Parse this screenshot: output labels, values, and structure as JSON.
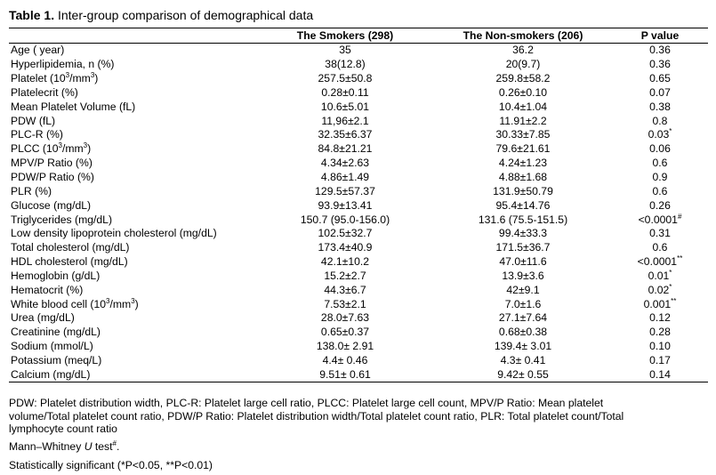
{
  "caption": {
    "label": "Table 1.",
    "text": " Inter-group comparison of demographical data"
  },
  "table": {
    "headers": [
      "",
      "The Smokers (298)",
      "The Non-smokers (206)",
      "P value"
    ],
    "rows": [
      {
        "variable": "Age ( year)",
        "smokers": "35",
        "non_smokers": "36.2",
        "p": "0.36"
      },
      {
        "variable": "Hyperlipidemia, n (%)",
        "smokers": "38(12.8)",
        "non_smokers": "20(9.7)",
        "p": "0.36"
      },
      {
        "variable": "Platelet (10",
        "variable_sup": "3",
        "variable_tail": "/mm",
        "variable_sup2": "3",
        "variable_end": ")",
        "smokers": "257.5±50.8",
        "non_smokers": "259.8±58.2",
        "p": "0.65"
      },
      {
        "variable": "Platelecrit (%)",
        "smokers": "0.28±0.11",
        "non_smokers": "0.26±0.10",
        "p": "0.07"
      },
      {
        "variable": "Mean Platelet Volume (fL)",
        "smokers": "10.6±5.01",
        "non_smokers": "10.4±1.04",
        "p": "0.38"
      },
      {
        "variable": "PDW (fL)",
        "smokers": "11,96±2.1",
        "non_smokers": "11.91±2.2",
        "p": "0.8"
      },
      {
        "variable": "PLC-R (%)",
        "smokers": "32.35±6.37",
        "non_smokers": "30.33±7.85",
        "p": "0.03",
        "p_sup": "*"
      },
      {
        "variable": "PLCC (10",
        "variable_sup": "3",
        "variable_tail": "/mm",
        "variable_sup2": "3",
        "variable_end": ")",
        "smokers": "84.8±21.21",
        "non_smokers": "79.6±21.61",
        "p": "0.06"
      },
      {
        "variable": "MPV/P Ratio (%)",
        "smokers": "4.34±2.63",
        "non_smokers": "4.24±1.23",
        "p": "0.6"
      },
      {
        "variable": "PDW/P Ratio (%)",
        "smokers": "4.86±1.49",
        "non_smokers": "4.88±1.68",
        "p": "0.9"
      },
      {
        "variable": "PLR (%)",
        "smokers": "129.5±57.37",
        "non_smokers": "131.9±50.79",
        "p": "0.6"
      },
      {
        "variable": "Glucose (mg/dL)",
        "smokers": "93.9±13.41",
        "non_smokers": "95.4±14.76",
        "p": "0.26"
      },
      {
        "variable": "Triglycerides (mg/dL)",
        "smokers": "150.7 (95.0-156.0)",
        "non_smokers": "131.6 (75.5-151.5)",
        "p": "<0.0001",
        "p_sup": "#"
      },
      {
        "variable": "Low density lipoprotein cholesterol (mg/dL)",
        "smokers": "102.5±32.7",
        "non_smokers": "99.4±33.3",
        "p": "0.31"
      },
      {
        "variable": "Total cholesterol (mg/dL)",
        "smokers": "173.4±40.9",
        "non_smokers": "171.5±36.7",
        "p": "0.6"
      },
      {
        "variable": "HDL cholesterol (mg/dL)",
        "smokers": "42.1±10.2",
        "non_smokers": "47.0±11.6",
        "p": "<0.0001",
        "p_sup": "**"
      },
      {
        "variable": "Hemoglobin (g/dL)",
        "smokers": "15.2±2.7",
        "non_smokers": "13.9±3.6",
        "p": "0.01",
        "p_sup": "*"
      },
      {
        "variable": "Hematocrit (%)",
        "smokers": "44.3±6.7",
        "non_smokers": "42±9.1",
        "p": "0.02",
        "p_sup": "*"
      },
      {
        "variable": "White blood cell (10",
        "variable_sup": "3",
        "variable_tail": "/mm",
        "variable_sup2": "3",
        "variable_end": ")",
        "smokers": "7.53±2.1",
        "non_smokers": "7.0±1.6",
        "p": "0.001",
        "p_sup": "**"
      },
      {
        "variable": "Urea (mg/dL)",
        "smokers": "28.0±7.63",
        "non_smokers": "27.1±7.64",
        "p": "0.12"
      },
      {
        "variable": "Creatinine (mg/dL)",
        "smokers": "0.65±0.37",
        "non_smokers": "0.68±0.38",
        "p": "0.28"
      },
      {
        "variable": "Sodium (mmol/L)",
        "smokers": "138.0± 2.91",
        "non_smokers": "139.4± 3.01",
        "p": "0.10"
      },
      {
        "variable": "Potassium (meq/L)",
        "smokers": "4.4± 0.46",
        "non_smokers": "4.3± 0.41",
        "p": "0.17"
      },
      {
        "variable": "Calcium (mg/dL)",
        "smokers": "9.51± 0.61",
        "non_smokers": "9.42± 0.55",
        "p": "0.14"
      }
    ]
  },
  "notes": {
    "abbrev_line1": "PDW: Platelet distribution width, PLC-R: Platelet large cell ratio, PLCC: Platelet large cell count, MPV/P Ratio: Mean platelet",
    "abbrev_line2": "volume/Total platelet count ratio, PDW/P Ratio: Platelet distribution width/Total platelet count ratio, PLR: Total platelet count/Total",
    "abbrev_line3": "lymphocyte count ratio",
    "mann_prefix": "Mann–Whitney ",
    "mann_u": "U",
    "mann_suffix": " test",
    "mann_sup": "#",
    "mann_end": ".",
    "significance": "Statistically significant (*P<0.05, **P<0.01)"
  }
}
